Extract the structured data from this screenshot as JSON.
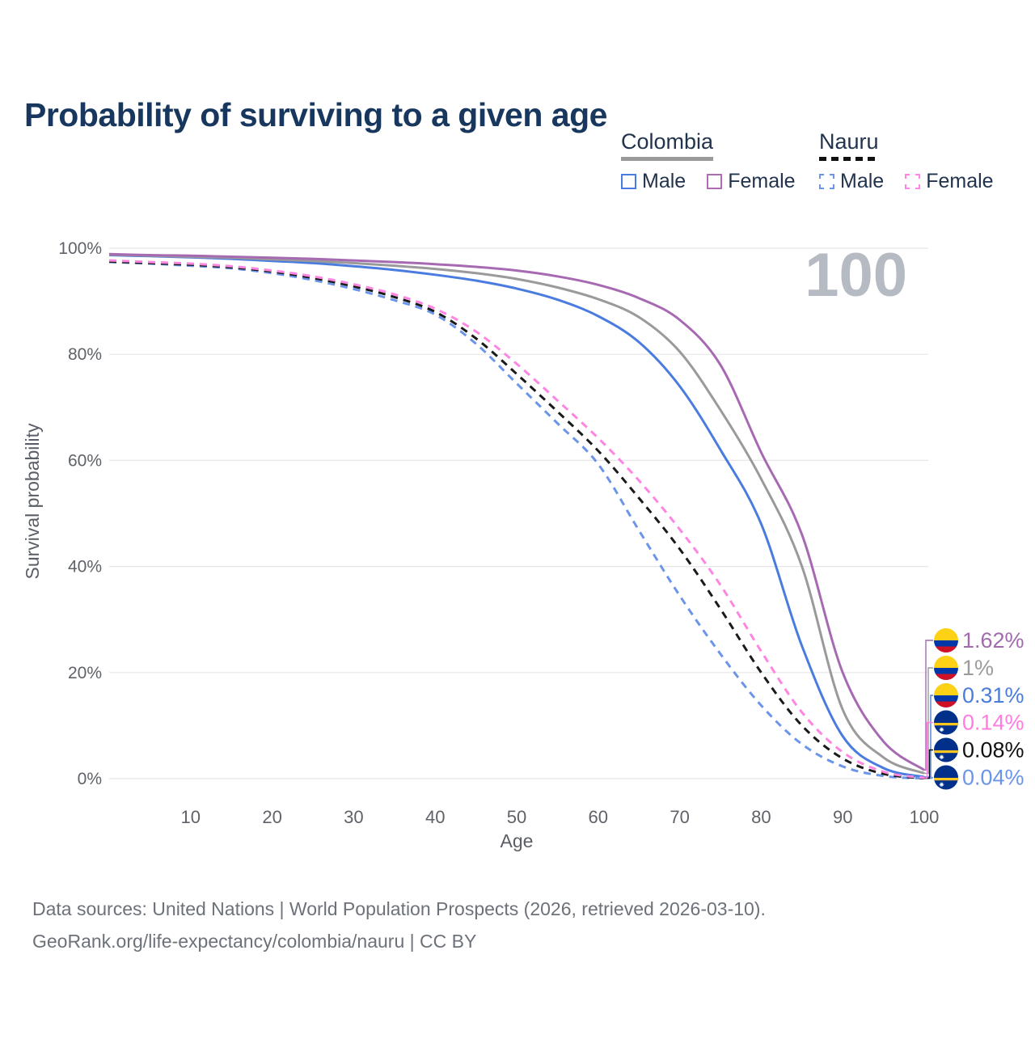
{
  "header": {
    "title": "Probability of surviving to a given age"
  },
  "legend": {
    "groups": [
      {
        "id": "colombia",
        "label": "Colombia",
        "line_style": "solid",
        "line_color": "#9a9a9a",
        "items": [
          {
            "id": "colombia-male",
            "label": "Male",
            "color": "#4a7ce0",
            "style": "solid"
          },
          {
            "id": "colombia-female",
            "label": "Female",
            "color": "#ad6cb4",
            "style": "solid"
          }
        ]
      },
      {
        "id": "nauru",
        "label": "Nauru",
        "line_style": "dashed",
        "line_color": "#111111",
        "items": [
          {
            "id": "nauru-male",
            "label": "Male",
            "color": "#6b95e8",
            "style": "dashed"
          },
          {
            "id": "nauru-female",
            "label": "Female",
            "color": "#ff85e2",
            "style": "dashed"
          }
        ]
      }
    ]
  },
  "chart_data": {
    "type": "line",
    "title": "Probability of surviving to a given age",
    "xlabel": "Age",
    "ylabel": "Survival probability",
    "xlim": [
      0,
      100
    ],
    "ylim": [
      0,
      100
    ],
    "x_ticks": [
      10,
      20,
      30,
      40,
      50,
      60,
      70,
      80,
      90,
      100
    ],
    "y_ticks": [
      {
        "value": 0,
        "label": "0%"
      },
      {
        "value": 20,
        "label": "20%"
      },
      {
        "value": 40,
        "label": "40%"
      },
      {
        "value": 60,
        "label": "60%"
      },
      {
        "value": 80,
        "label": "80%"
      },
      {
        "value": 100,
        "label": "100%"
      }
    ],
    "grid": "horizontal",
    "gridline_color": "#e6e6e8",
    "tick_color": "#5f6269",
    "axis_title_color": "#5a5e66",
    "age_watermark": "100",
    "watermark_color": "#b6bac2",
    "legend_position": "top-right",
    "x": [
      0,
      5,
      10,
      15,
      20,
      25,
      30,
      35,
      40,
      45,
      50,
      55,
      60,
      65,
      70,
      75,
      80,
      85,
      90,
      95,
      100
    ],
    "series": [
      {
        "name": "Colombia Male",
        "country": "Colombia",
        "sex": "Male",
        "color": "#4a7ce0",
        "dash": false,
        "end_label": "0.31%",
        "end_label_color": "#4a7cd9",
        "flag": "colombia",
        "label_row": 2,
        "values": [
          98.7,
          98.5,
          98.3,
          98.0,
          97.6,
          97.2,
          96.6,
          95.9,
          95.0,
          93.9,
          92.4,
          90.3,
          87.2,
          82.3,
          74.0,
          62.0,
          48.0,
          25.0,
          8.0,
          2.0,
          0.31
        ]
      },
      {
        "name": "Colombia",
        "country": "Colombia",
        "sex": "Both",
        "color": "#9a9a9a",
        "dash": false,
        "end_label": "1%",
        "end_label_color": "#9b9b9b",
        "flag": "colombia",
        "label_row": 1,
        "values": [
          98.8,
          98.6,
          98.4,
          98.2,
          97.9,
          97.6,
          97.2,
          96.7,
          96.1,
          95.3,
          94.2,
          92.6,
          90.4,
          87.0,
          80.5,
          69.5,
          56.5,
          40.0,
          13.0,
          4.0,
          1.0
        ]
      },
      {
        "name": "Colombia Female",
        "country": "Colombia",
        "sex": "Female",
        "color": "#a76ab2",
        "dash": false,
        "end_label": "1.62%",
        "end_label_color": "#a16bad",
        "flag": "colombia",
        "label_row": 0,
        "values": [
          98.9,
          98.7,
          98.6,
          98.4,
          98.2,
          98.0,
          97.7,
          97.4,
          97.0,
          96.5,
          95.8,
          94.7,
          93.1,
          90.6,
          86.5,
          78.0,
          61.5,
          46.0,
          20.0,
          7.0,
          1.62
        ]
      },
      {
        "name": "Nauru Male",
        "country": "Nauru",
        "sex": "Male",
        "color": "#6b95e8",
        "dash": true,
        "end_label": "0.04%",
        "end_label_color": "#6b95e8",
        "flag": "nauru",
        "label_row": 5,
        "values": [
          97.4,
          97.1,
          96.7,
          96.2,
          95.3,
          94.0,
          92.3,
          90.2,
          87.5,
          82.0,
          74.5,
          67.0,
          59.3,
          46.8,
          34.5,
          23.5,
          13.8,
          6.5,
          2.3,
          0.5,
          0.04
        ]
      },
      {
        "name": "Nauru",
        "country": "Nauru",
        "sex": "Both",
        "color": "#1a1a1a",
        "dash": true,
        "end_label": "0.08%",
        "end_label_color": "#111111",
        "flag": "nauru",
        "label_row": 4,
        "values": [
          97.5,
          97.2,
          96.9,
          96.4,
          95.6,
          94.4,
          92.8,
          90.8,
          88.0,
          83.0,
          76.3,
          69.2,
          61.8,
          52.9,
          43.3,
          32.0,
          20.0,
          10.0,
          3.8,
          0.9,
          0.08
        ]
      },
      {
        "name": "Nauru Female",
        "country": "Nauru",
        "sex": "Female",
        "color": "#ff85e2",
        "dash": true,
        "end_label": "0.14%",
        "end_label_color": "#ff7de0",
        "flag": "nauru",
        "label_row": 3,
        "values": [
          97.7,
          97.4,
          97.1,
          96.6,
          95.8,
          94.7,
          93.2,
          91.3,
          88.6,
          84.3,
          78.2,
          71.3,
          64.2,
          56.2,
          47.0,
          36.5,
          24.0,
          12.5,
          5.0,
          1.3,
          0.14
        ]
      }
    ],
    "flag_colors": {
      "colombia": {
        "yellow": "#FCD116",
        "blue": "#0038A8",
        "red": "#CE1126"
      },
      "nauru": {
        "blue": "#01308a",
        "stripe": "#FFC61E",
        "star": "#ffffff"
      }
    }
  },
  "footer": {
    "line1": "Data sources: United Nations | World Population Prospects (2026, retrieved 2026-03-10).",
    "line2": "GeoRank.org/life-expectancy/colombia/nauru | CC BY"
  }
}
